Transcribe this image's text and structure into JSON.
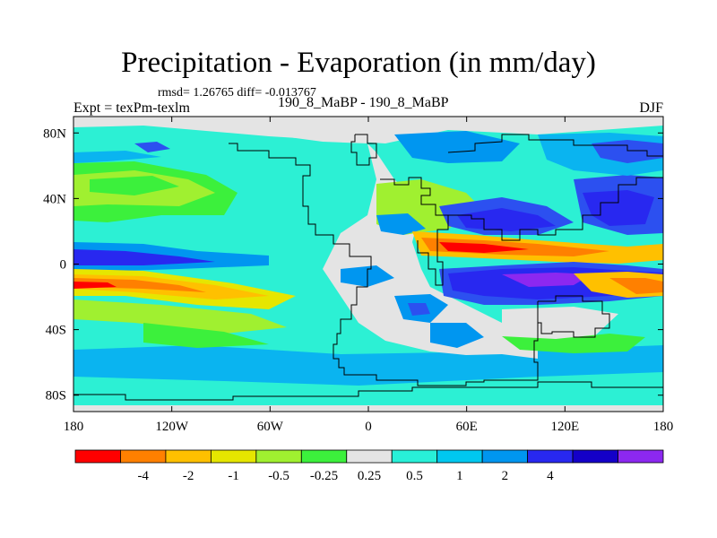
{
  "title": "Precipitation - Evaporation (in mm/day)",
  "stats_line": "rmsd= 1.26765 diff= -0.013767",
  "experiment": "Expt = texPm-texlm",
  "case": "190_8_MaBP - 190_8_MaBP",
  "season": "DJF",
  "chart_data": {
    "type": "heatmap",
    "title": "Precipitation - Evaporation (in mm/day)",
    "xlabel": "",
    "ylabel": "",
    "xlim": [
      -180,
      180
    ],
    "ylim": [
      -90,
      90
    ],
    "x_ticks": [
      {
        "value": -180,
        "label": "180"
      },
      {
        "value": -120,
        "label": "120W"
      },
      {
        "value": -60,
        "label": "60W"
      },
      {
        "value": 0,
        "label": "0"
      },
      {
        "value": 60,
        "label": "60E"
      },
      {
        "value": 120,
        "label": "120E"
      },
      {
        "value": 180,
        "label": "180"
      }
    ],
    "y_ticks": [
      {
        "value": 80,
        "label": "80N"
      },
      {
        "value": 40,
        "label": "40N"
      },
      {
        "value": 0,
        "label": "0"
      },
      {
        "value": -40,
        "label": "40S"
      },
      {
        "value": -80,
        "label": "80S"
      }
    ],
    "colorbar": {
      "colors": [
        "#ff0000",
        "#ff8000",
        "#ffc000",
        "#e6e600",
        "#a0f030",
        "#3cf03c",
        "#e4e4e4",
        "#28f0d8",
        "#00c8f0",
        "#0096f0",
        "#2828f0",
        "#1400c8",
        "#8c28f0"
      ],
      "boundaries": [
        -4,
        -2,
        -1,
        -0.5,
        -0.25,
        0.25,
        0.5,
        1,
        2,
        4
      ],
      "labels": [
        "-4",
        "-2",
        "-1",
        "-0.5",
        "-0.25",
        "0.25",
        "0.5",
        "1",
        "2",
        "4"
      ]
    }
  }
}
